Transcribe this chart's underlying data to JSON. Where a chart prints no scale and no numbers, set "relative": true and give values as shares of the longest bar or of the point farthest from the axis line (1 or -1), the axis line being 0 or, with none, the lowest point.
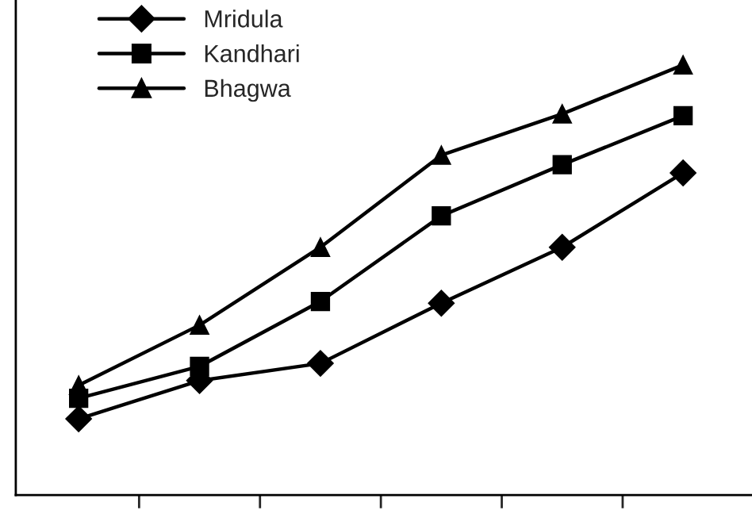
{
  "chart_data": {
    "type": "line",
    "relative": true,
    "categories": [
      null,
      null,
      null,
      null,
      null,
      null
    ],
    "series": [
      {
        "name": "Mridula",
        "color": "#000000",
        "marker": "diamond",
        "values": [
          0.177,
          0.266,
          0.306,
          0.446,
          0.576,
          0.749
        ]
      },
      {
        "name": "Kandhari",
        "color": "#000000",
        "marker": "square",
        "values": [
          0.225,
          0.299,
          0.45,
          0.649,
          0.768,
          0.882
        ]
      },
      {
        "name": "Bhagwa",
        "color": "#000000",
        "marker": "triangle",
        "values": [
          0.255,
          0.395,
          0.576,
          0.79,
          0.886,
          1
        ]
      }
    ],
    "legend": "top left",
    "grid": false,
    "line_style": "solid"
  }
}
